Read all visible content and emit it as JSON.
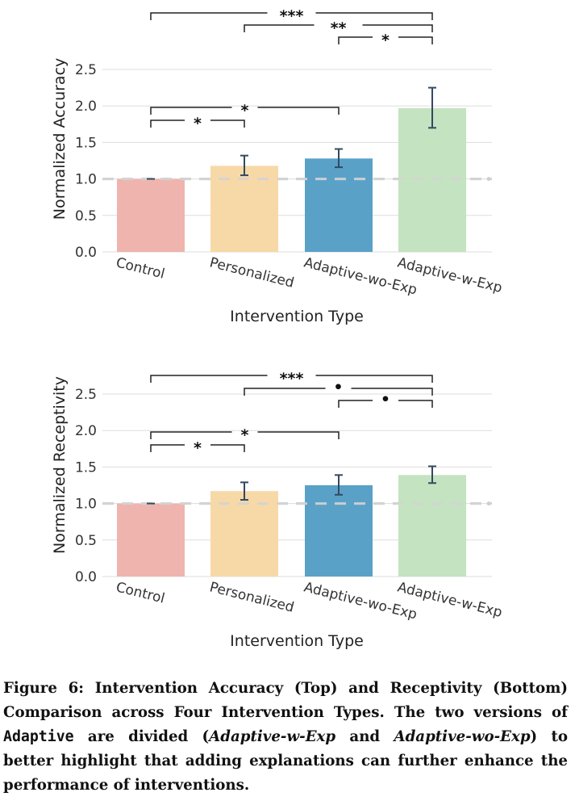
{
  "chart_data": [
    {
      "type": "bar",
      "categories": [
        "Control",
        "Personalized",
        "Adaptive-wo-Exp",
        "Adaptive-w-Exp"
      ],
      "values": [
        1.0,
        1.18,
        1.28,
        1.97
      ],
      "error_low": [
        1.0,
        1.05,
        1.16,
        1.7
      ],
      "error_high": [
        1.0,
        1.32,
        1.41,
        2.25
      ],
      "colors": [
        "#efb4ad",
        "#f7d9a8",
        "#5aa1c8",
        "#c4e3c0"
      ],
      "ylabel": "Normalized Accuracy",
      "xlabel": "Intervention Type",
      "ylim": [
        0,
        2.5
      ],
      "yticks": [
        "0.0",
        "0.5",
        "1.0",
        "1.5",
        "2.0",
        "2.5"
      ],
      "reference_line": 1.0,
      "grid": true,
      "significance": [
        {
          "from": "Control",
          "to": "Personalized",
          "label": "*"
        },
        {
          "from": "Control",
          "to": "Adaptive-wo-Exp",
          "label": "*"
        },
        {
          "from": "Control",
          "to": "Adaptive-w-Exp",
          "label": "***"
        },
        {
          "from": "Personalized",
          "to": "Adaptive-w-Exp",
          "label": "**"
        },
        {
          "from": "Adaptive-wo-Exp",
          "to": "Adaptive-w-Exp",
          "label": "*"
        }
      ]
    },
    {
      "type": "bar",
      "categories": [
        "Control",
        "Personalized",
        "Adaptive-wo-Exp",
        "Adaptive-w-Exp"
      ],
      "values": [
        1.0,
        1.17,
        1.25,
        1.39
      ],
      "error_low": [
        1.0,
        1.05,
        1.12,
        1.28
      ],
      "error_high": [
        1.0,
        1.29,
        1.39,
        1.51
      ],
      "colors": [
        "#efb4ad",
        "#f7d9a8",
        "#5aa1c8",
        "#c4e3c0"
      ],
      "ylabel": "Normalized Receptivity",
      "xlabel": "Intervention Type",
      "ylim": [
        0,
        2.5
      ],
      "yticks": [
        "0.0",
        "0.5",
        "1.0",
        "1.5",
        "2.0",
        "2.5"
      ],
      "reference_line": 1.0,
      "grid": true,
      "significance": [
        {
          "from": "Control",
          "to": "Personalized",
          "label": "*"
        },
        {
          "from": "Control",
          "to": "Adaptive-wo-Exp",
          "label": "*"
        },
        {
          "from": "Control",
          "to": "Adaptive-w-Exp",
          "label": "***"
        },
        {
          "from": "Personalized",
          "to": "Adaptive-w-Exp",
          "label": "•"
        },
        {
          "from": "Adaptive-wo-Exp",
          "to": "Adaptive-w-Exp",
          "label": "•"
        }
      ]
    }
  ],
  "caption": {
    "prefix": "Figure 6: Intervention Accuracy (Top) and Receptivity (Bottom) Comparison across Four Intervention Types. The two versions of ",
    "code": "Adaptive",
    "middle": " are divided (",
    "em1": "Adaptive-w-Exp",
    "and": " and ",
    "em2": "Adaptive-wo-Exp",
    "suffix": ") to better highlight that adding explanations can further enhance the performance of interventions."
  }
}
